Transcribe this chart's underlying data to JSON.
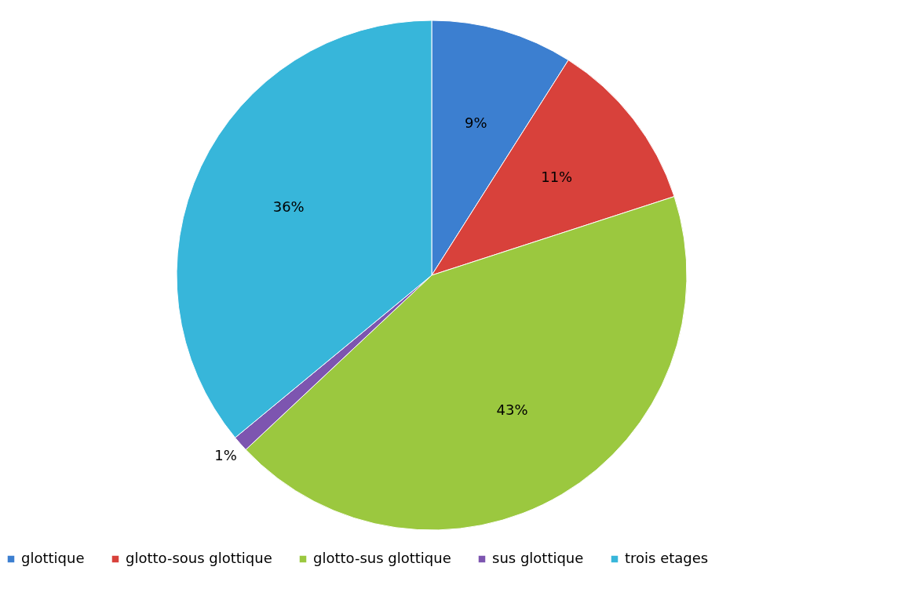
{
  "chart_data": {
    "type": "pie",
    "categories": [
      "glottique",
      "glotto-sous glottique",
      "glotto-sus glottique",
      "sus glottique",
      "trois etages"
    ],
    "values": [
      9,
      11,
      43,
      1,
      36
    ],
    "colors": [
      "#3c7fd0",
      "#d8413b",
      "#9bc83f",
      "#7d55b0",
      "#37b6da"
    ],
    "value_labels": [
      "9%",
      "11%",
      "43%",
      "1%",
      "36%"
    ],
    "legend": "bottom"
  }
}
